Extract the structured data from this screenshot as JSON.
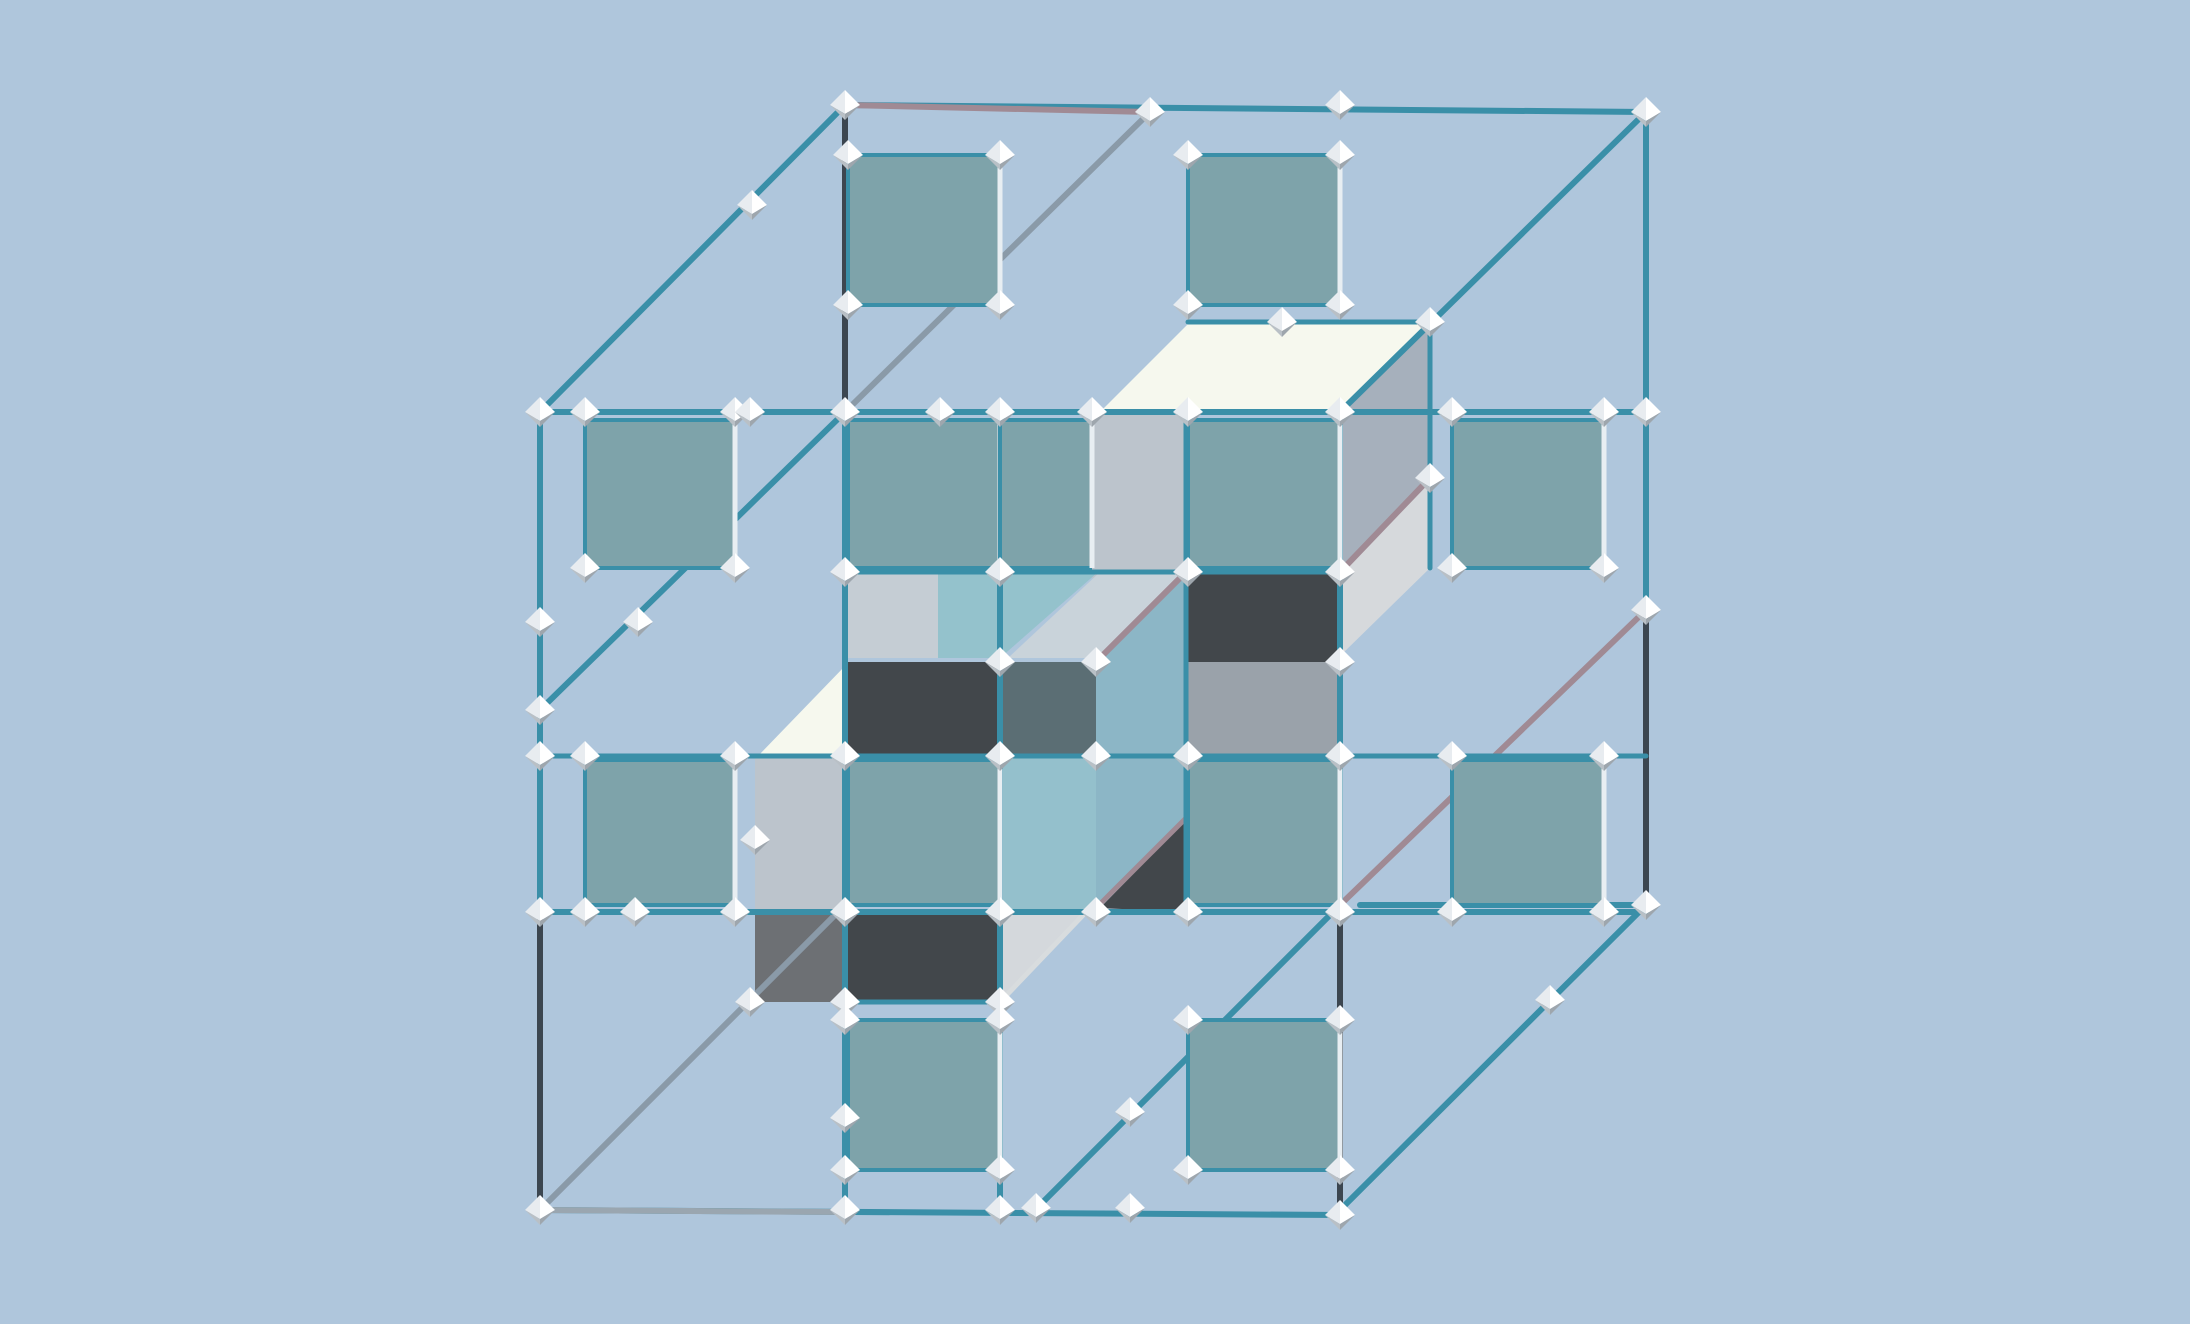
{
  "scene": {
    "background": "#afc6dc",
    "colors": {
      "edge_teal": "#3a8fa8",
      "edge_mauve": "#a08a94",
      "edge_gray": "#8a9aa8",
      "edge_dark": "#3c4650",
      "face_teal": "#7ea3aa",
      "face_light": "#bcc4cc",
      "face_cream": "#f6f8ee",
      "face_dark": "#42474b",
      "face_slate": "#5b6e74",
      "face_cyan": "#94c2cc",
      "face_side": "#a6b0bc",
      "face_mid": "#9aa2aa",
      "vertex": "#ffffff"
    }
  }
}
